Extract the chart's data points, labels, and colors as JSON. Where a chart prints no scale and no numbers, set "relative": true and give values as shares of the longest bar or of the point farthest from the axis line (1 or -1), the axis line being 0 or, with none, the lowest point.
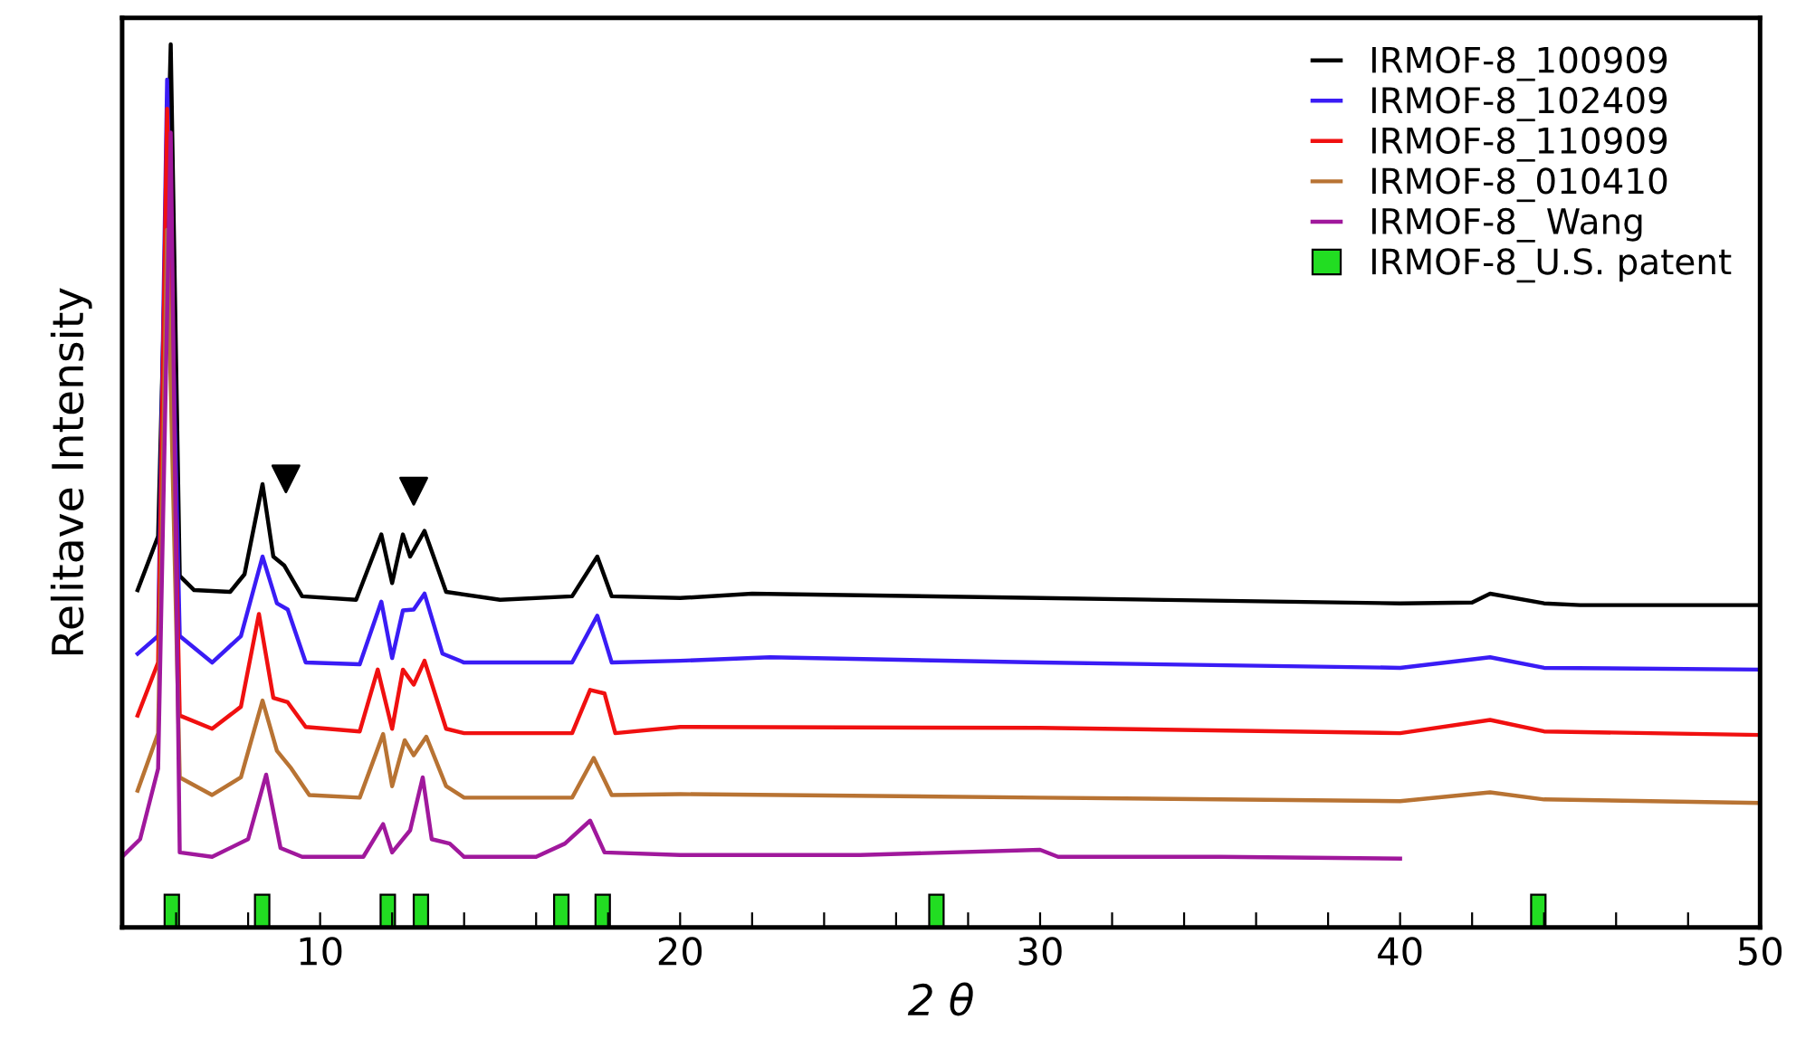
{
  "chart_data": {
    "type": "line",
    "relative": true,
    "xlabel": "2 θ",
    "ylabel": "Relitave Intensity",
    "xlim": [
      4.5,
      50
    ],
    "xticks": [
      {
        "value": 6,
        "label": null
      },
      {
        "value": 8,
        "label": null
      },
      10,
      {
        "value": 12,
        "label": null
      },
      {
        "value": 14,
        "label": null
      },
      {
        "value": 16,
        "label": null
      },
      {
        "value": 18,
        "label": null
      },
      20,
      {
        "value": 22,
        "label": null
      },
      {
        "value": 24,
        "label": null
      },
      {
        "value": 26,
        "label": null
      },
      {
        "value": 28,
        "label": null
      },
      30,
      {
        "value": 32,
        "label": null
      },
      {
        "value": 34,
        "label": null
      },
      {
        "value": 36,
        "label": null
      },
      {
        "value": 38,
        "label": null
      },
      40,
      {
        "value": 42,
        "label": null
      },
      {
        "value": 44,
        "label": null
      },
      {
        "value": 46,
        "label": null
      },
      {
        "value": 48,
        "label": null
      },
      50
    ],
    "grid": false,
    "legend": "top right",
    "tick_labels": "x",
    "series": [
      {
        "name": "IRMOF-8_100909",
        "color": "#000000",
        "x": [
          4.93,
          5.5,
          5.85,
          6.1,
          6.5,
          7.5,
          7.9,
          8.4,
          8.7,
          9.0,
          9.5,
          11.0,
          11.7,
          12.0,
          12.3,
          12.5,
          12.9,
          13.5,
          15,
          17,
          17.7,
          18.1,
          20,
          22,
          30,
          40,
          42,
          42.5,
          44,
          45,
          50
        ],
        "values": [
          0.382,
          0.443,
          1.0,
          0.398,
          0.382,
          0.38,
          0.4,
          0.502,
          0.42,
          0.41,
          0.375,
          0.371,
          0.445,
          0.39,
          0.445,
          0.42,
          0.449,
          0.38,
          0.371,
          0.375,
          0.42,
          0.375,
          0.373,
          0.378,
          0.373,
          0.367,
          0.368,
          0.378,
          0.367,
          0.365,
          0.365
        ]
      },
      {
        "name": "IRMOF-8_102409",
        "color": "#3a1cf5",
        "x": [
          4.93,
          5.5,
          5.75,
          6.1,
          7,
          7.8,
          8.4,
          8.8,
          9.1,
          9.6,
          11.1,
          11.7,
          12.0,
          12.3,
          12.6,
          12.9,
          13.4,
          14,
          17,
          17.7,
          18.1,
          20,
          22.5,
          30,
          40,
          42.5,
          44,
          50
        ],
        "values": [
          0.31,
          0.33,
          0.96,
          0.33,
          0.3,
          0.33,
          0.42,
          0.367,
          0.36,
          0.3,
          0.298,
          0.369,
          0.305,
          0.359,
          0.36,
          0.378,
          0.31,
          0.3,
          0.3,
          0.353,
          0.3,
          0.302,
          0.306,
          0.3,
          0.294,
          0.306,
          0.294,
          0.292
        ]
      },
      {
        "name": "IRMOF-8_110909",
        "color": "#f01010",
        "x": [
          4.93,
          5.5,
          5.75,
          6.1,
          7,
          7.8,
          8.3,
          8.7,
          9.1,
          9.6,
          11.1,
          11.6,
          12.0,
          12.3,
          12.6,
          12.9,
          13.5,
          14,
          17,
          17.5,
          17.9,
          18.2,
          20,
          30,
          40,
          42.5,
          44,
          50
        ],
        "values": [
          0.24,
          0.3,
          0.927,
          0.24,
          0.225,
          0.25,
          0.355,
          0.26,
          0.255,
          0.227,
          0.222,
          0.292,
          0.225,
          0.292,
          0.275,
          0.302,
          0.225,
          0.22,
          0.22,
          0.269,
          0.265,
          0.22,
          0.227,
          0.226,
          0.22,
          0.235,
          0.222,
          0.218
        ]
      },
      {
        "name": "IRMOF-8_010410",
        "color": "#b87333",
        "x": [
          4.93,
          5.5,
          5.75,
          6.1,
          7,
          7.8,
          8.4,
          8.8,
          9.2,
          9.7,
          11.1,
          11.75,
          12.0,
          12.35,
          12.6,
          12.95,
          13.5,
          14,
          17,
          17.6,
          18.1,
          20,
          30,
          40,
          42.5,
          44,
          50
        ],
        "values": [
          0.155,
          0.22,
          0.79,
          0.17,
          0.15,
          0.17,
          0.257,
          0.2,
          0.18,
          0.15,
          0.147,
          0.219,
          0.16,
          0.212,
          0.195,
          0.216,
          0.16,
          0.147,
          0.147,
          0.192,
          0.15,
          0.151,
          0.147,
          0.143,
          0.153,
          0.145,
          0.141
        ]
      },
      {
        "name": "IRMOF-8_ Wang",
        "color": "#a0189c",
        "x": [
          4.5,
          5.0,
          5.5,
          5.85,
          6.1,
          7,
          8.0,
          8.5,
          8.9,
          9.5,
          11.2,
          11.75,
          12.0,
          12.5,
          12.85,
          13.1,
          13.6,
          14,
          16,
          16.8,
          17.5,
          17.9,
          20,
          25,
          30,
          30.5,
          35,
          40
        ],
        "values": [
          0.08,
          0.1,
          0.18,
          0.9,
          0.085,
          0.08,
          0.1,
          0.173,
          0.09,
          0.08,
          0.08,
          0.117,
          0.085,
          0.11,
          0.17,
          0.1,
          0.095,
          0.08,
          0.08,
          0.095,
          0.121,
          0.085,
          0.082,
          0.082,
          0.088,
          0.08,
          0.08,
          0.078
        ]
      },
      {
        "name": "IRMOF-8_U.S. patent",
        "type": "bar",
        "color": "#22dd22",
        "x": [
          5.88,
          8.39,
          11.88,
          12.8,
          16.7,
          17.85,
          27.12,
          43.84
        ],
        "values": [
          0.037,
          0.037,
          0.037,
          0.037,
          0.037,
          0.037,
          0.037,
          0.037
        ]
      },
      {
        "type": "scatter",
        "marker": "triangle",
        "color": "#000000",
        "x": [
          9.05,
          12.6
        ],
        "values": [
          0.508,
          0.494
        ]
      }
    ]
  }
}
